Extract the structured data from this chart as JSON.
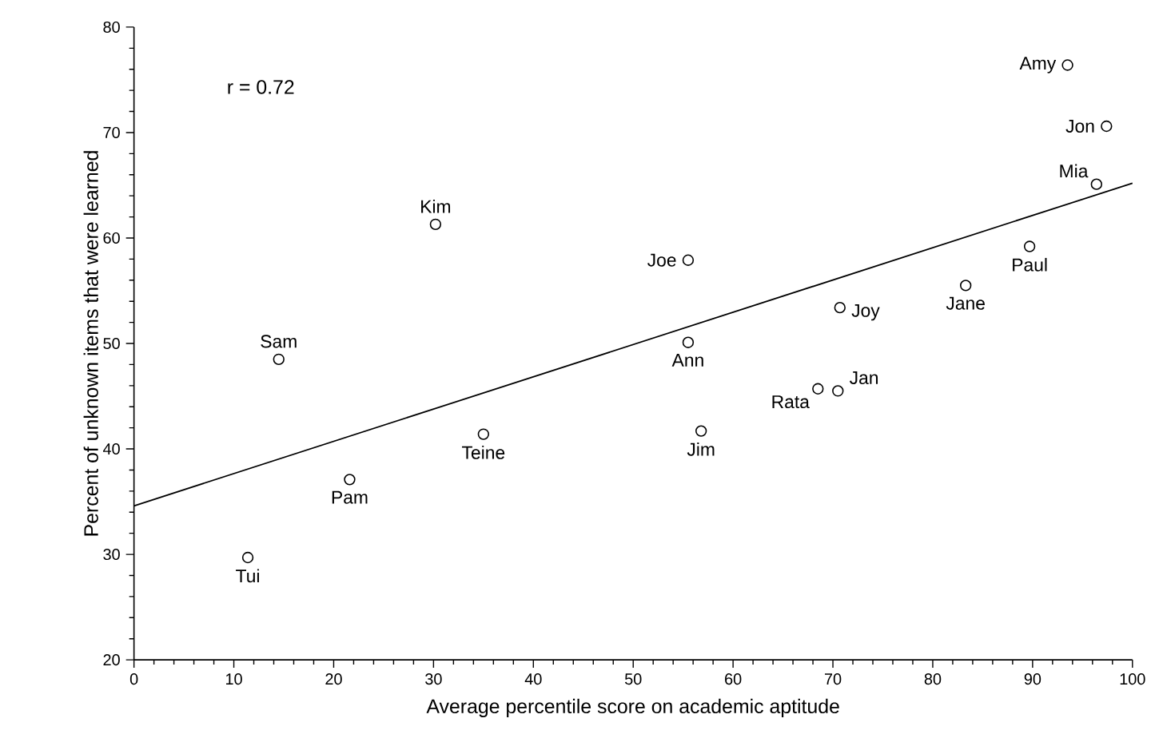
{
  "chart_data": {
    "type": "scatter",
    "xlabel": "Average percentile score on academic aptitude",
    "ylabel": "Percent of unknown items that were learned",
    "xlim": [
      0,
      100
    ],
    "ylim": [
      20,
      80
    ],
    "xticks": [
      0,
      10,
      20,
      30,
      40,
      50,
      60,
      70,
      80,
      90,
      100
    ],
    "yticks": [
      20,
      30,
      40,
      50,
      60,
      70,
      80
    ],
    "series": [
      {
        "color": "#000000",
        "marker": "circle",
        "x": [
          93.5,
          97.4,
          96.4,
          89.7,
          83.3,
          70.7,
          55.5,
          55.5,
          68.5,
          70.5,
          56.8,
          30.2,
          14.5,
          35.0,
          21.6,
          11.4
        ],
        "values": [
          76.4,
          70.6,
          65.1,
          59.2,
          55.5,
          53.4,
          57.9,
          50.1,
          45.7,
          45.5,
          41.7,
          61.3,
          48.5,
          41.4,
          37.1,
          29.7
        ]
      },
      {
        "type": "line",
        "color": "#000000",
        "marker": "none",
        "x": [
          0,
          100
        ],
        "values": [
          34.6,
          65.2
        ]
      }
    ],
    "annotations": [
      "r = 0.72",
      {
        "text": "Amy",
        "x": 93.5,
        "y": 76.4
      },
      {
        "text": "Jon",
        "x": 97.4,
        "y": 70.6
      },
      {
        "text": "Mia",
        "x": 96.4,
        "y": 65.1
      },
      {
        "text": "Paul",
        "x": 89.7,
        "y": 59.2
      },
      {
        "text": "Jane",
        "x": 83.3,
        "y": 55.5
      },
      {
        "text": "Joy",
        "x": 70.7,
        "y": 53.4
      },
      {
        "text": "Joe",
        "x": 55.5,
        "y": 57.9
      },
      {
        "text": "Ann",
        "x": 55.5,
        "y": 50.1
      },
      {
        "text": "Rata",
        "x": 68.5,
        "y": 45.7
      },
      {
        "text": "Jan",
        "x": 70.5,
        "y": 45.5
      },
      {
        "text": "Jim",
        "x": 56.8,
        "y": 41.7
      },
      {
        "text": "Kim",
        "x": 30.2,
        "y": 61.3
      },
      {
        "text": "Sam",
        "x": 14.5,
        "y": 48.5
      },
      {
        "text": "Teine",
        "x": 35.0,
        "y": 41.4
      },
      {
        "text": "Pam",
        "x": 21.6,
        "y": 37.1
      },
      {
        "text": "Tui",
        "x": 11.4,
        "y": 29.7
      }
    ]
  }
}
